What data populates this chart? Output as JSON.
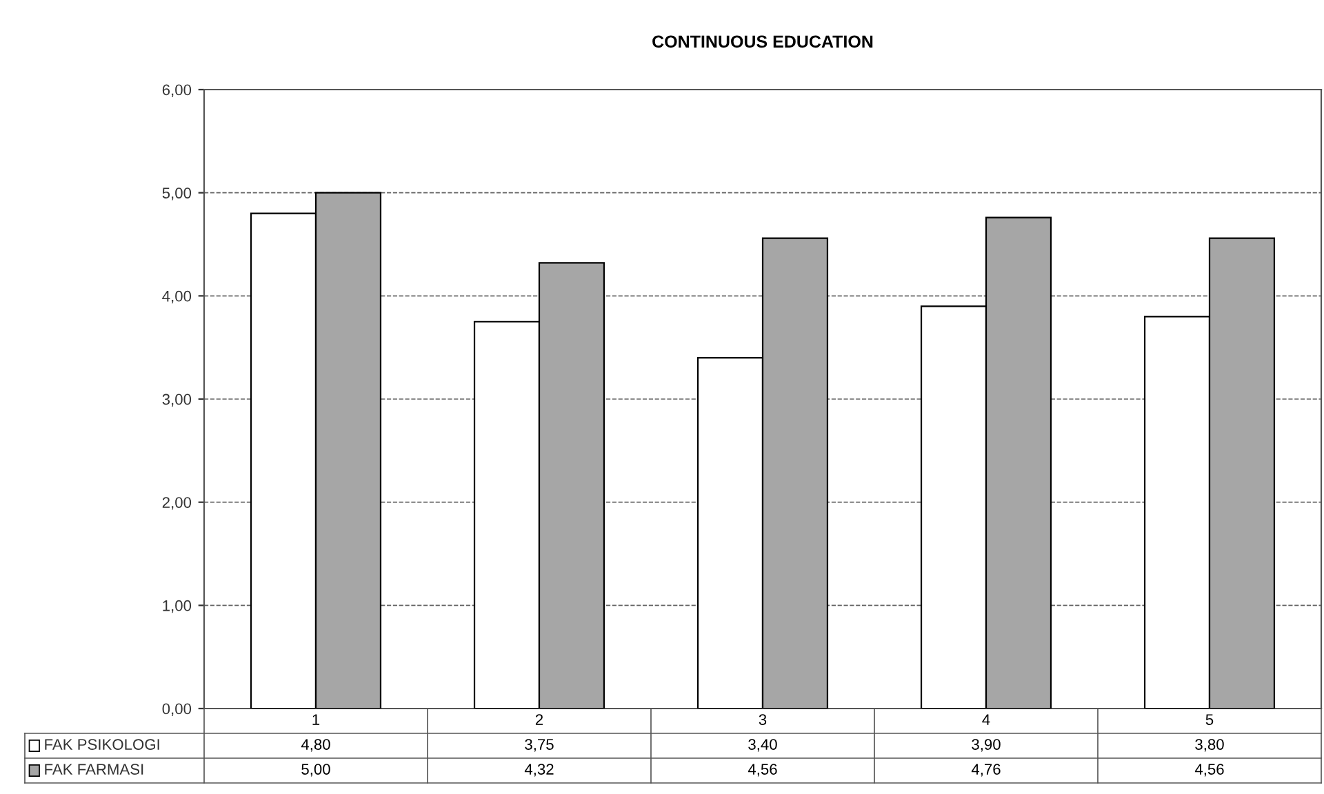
{
  "chart_data": {
    "type": "bar",
    "title": "CONTINUOUS EDUCATION",
    "categories": [
      "1",
      "2",
      "3",
      "4",
      "5"
    ],
    "series": [
      {
        "name": "FAK PSIKOLOGI",
        "color": "#ffffff",
        "values": [
          4.8,
          3.75,
          3.4,
          3.9,
          3.8
        ],
        "value_labels": [
          "4,80",
          "3,75",
          "3,40",
          "3,90",
          "3,80"
        ]
      },
      {
        "name": "FAK FARMASI",
        "color": "#a6a6a6",
        "values": [
          5.0,
          4.32,
          4.56,
          4.76,
          4.56
        ],
        "value_labels": [
          "5,00",
          "4,32",
          "4,56",
          "4,76",
          "4,56"
        ]
      }
    ],
    "ylim": [
      0,
      6
    ],
    "yticks": [
      {
        "value": 0,
        "label": "0,00"
      },
      {
        "value": 1,
        "label": "1,00"
      },
      {
        "value": 2,
        "label": "2,00"
      },
      {
        "value": 3,
        "label": "3,00"
      },
      {
        "value": 4,
        "label": "4,00"
      },
      {
        "value": 5,
        "label": "5,00"
      },
      {
        "value": 6,
        "label": "6,00"
      }
    ],
    "grid": "y",
    "line_style": "dashed",
    "legend": "bottom left"
  }
}
